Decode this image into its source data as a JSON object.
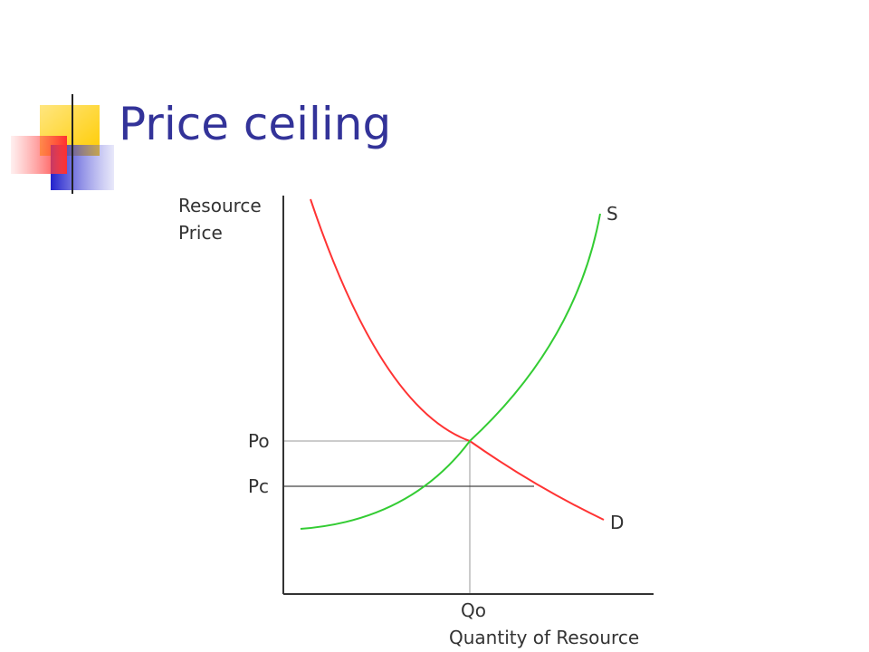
{
  "slide": {
    "title": "Price ceiling",
    "decoration": {
      "yellow": "#FFD700",
      "red": "#FF4040",
      "blue": "#3333CC"
    }
  },
  "diagram": {
    "y_axis_label": [
      "Resource",
      "Price"
    ],
    "x_axis_label": "Quantity of Resource",
    "supply_label": "S",
    "demand_label": "D",
    "equilibrium_price_label": "Po",
    "ceiling_price_label": "Pc",
    "equilibrium_quantity_label": "Qo",
    "colors": {
      "supply": "#33CC33",
      "demand": "#FF3333",
      "axis": "#333333",
      "guides": "#999999"
    }
  }
}
